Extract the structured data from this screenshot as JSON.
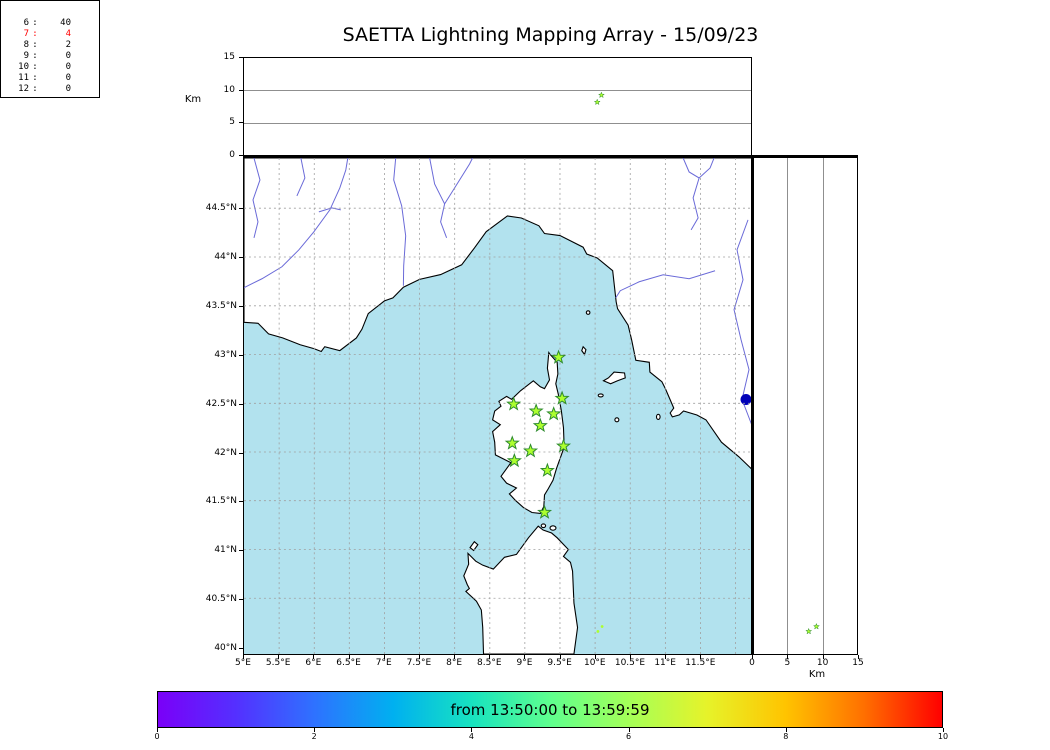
{
  "title": "SAETTA Lightning Mapping Array - 15/09/23",
  "top_panel": {
    "ylabel": "Km"
  },
  "right_panel": {
    "xlabel": "Km"
  },
  "alt_ticks": [
    0,
    5,
    10,
    15
  ],
  "map_axes": {
    "lon_ticks": [
      {
        "lon": 5,
        "label": "5°E"
      },
      {
        "lon": 5.5,
        "label": "5.5°E"
      },
      {
        "lon": 6,
        "label": "6°E"
      },
      {
        "lon": 6.5,
        "label": "6.5°E"
      },
      {
        "lon": 7,
        "label": "7°E"
      },
      {
        "lon": 7.5,
        "label": "7.5°E"
      },
      {
        "lon": 8,
        "label": "8°E"
      },
      {
        "lon": 8.5,
        "label": "8.5°E"
      },
      {
        "lon": 9,
        "label": "9°E"
      },
      {
        "lon": 9.5,
        "label": "9.5°E"
      },
      {
        "lon": 10,
        "label": "10°E"
      },
      {
        "lon": 10.5,
        "label": "10.5°E"
      },
      {
        "lon": 11,
        "label": "11°E"
      },
      {
        "lon": 11.5,
        "label": "11.5°E"
      }
    ],
    "lat_ticks": [
      {
        "lat": 40,
        "label": "40°N"
      },
      {
        "lat": 40.5,
        "label": "40.5°N"
      },
      {
        "lat": 41,
        "label": "41°N"
      },
      {
        "lat": 41.5,
        "label": "41.5°N"
      },
      {
        "lat": 42,
        "label": "42°N"
      },
      {
        "lat": 42.5,
        "label": "42.5°N"
      },
      {
        "lat": 43,
        "label": "43°N"
      },
      {
        "lat": 43.5,
        "label": "43.5°N"
      },
      {
        "lat": 44,
        "label": "44°N"
      },
      {
        "lat": 44.5,
        "label": "44.5°N"
      }
    ]
  },
  "stats": {
    "colon": ":",
    "rows": [
      {
        "level": "6",
        "count": "40",
        "red": false
      },
      {
        "level": "7",
        "count": "4",
        "red": true
      },
      {
        "level": "8",
        "count": "2",
        "red": false
      },
      {
        "level": "9",
        "count": "0",
        "red": false
      },
      {
        "level": "10",
        "count": "0",
        "red": false
      },
      {
        "level": "11",
        "count": "0",
        "red": false
      },
      {
        "level": "12",
        "count": "0",
        "red": false
      }
    ]
  },
  "colorbar": {
    "label": "from 13:50:00 to 13:59:59",
    "ticks": [
      0,
      2,
      4,
      6,
      8,
      10
    ],
    "stops": [
      "#7a00f8",
      "#5430ff",
      "#2e72ff",
      "#00b0f0",
      "#17e3c0",
      "#5eff8e",
      "#a4ff58",
      "#e6f32a",
      "#ffc400",
      "#ff7000",
      "#ff0000"
    ]
  },
  "colors": {
    "sea": "#b2e2ee",
    "land": "#ffffff",
    "coast": "#000000",
    "river": "#6a6ad8",
    "grid": "#a0a0a0",
    "station_fill": "#adff2f",
    "station_edge": "#2e8b2e",
    "lake": "#0000b8",
    "highlight_red": "#ff0000"
  },
  "chart_data": {
    "type": "map",
    "title": "SAETTA Lightning Mapping Array - 15/09/23",
    "date": "15/09/23",
    "time_window": {
      "from": "13:50:00",
      "to": "13:59:59"
    },
    "projection_extent": {
      "lon_min": 5.0,
      "lon_max": 12.3,
      "lat_min": 39.9,
      "lat_max": 45.0
    },
    "panels": [
      {
        "id": "altitude-vs-longitude",
        "position": "top",
        "x": "longitude",
        "y": "altitude_km",
        "y_range": [
          0,
          15
        ],
        "y_gridlines": [
          5,
          10
        ]
      },
      {
        "id": "plan-view-map",
        "position": "center",
        "x": "longitude",
        "y": "latitude",
        "grid_step_deg": 0.5
      },
      {
        "id": "altitude-vs-latitude",
        "position": "right",
        "x": "altitude_km",
        "y": "latitude",
        "x_range": [
          0,
          15
        ],
        "x_gridlines": [
          5,
          10
        ]
      },
      {
        "id": "stations-contributing-histogram",
        "position": "top-right"
      }
    ],
    "stations_lonlat": [
      [
        9.48,
        42.97
      ],
      [
        8.84,
        42.49
      ],
      [
        9.16,
        42.42
      ],
      [
        9.53,
        42.55
      ],
      [
        9.41,
        42.39
      ],
      [
        9.22,
        42.27
      ],
      [
        8.82,
        42.09
      ],
      [
        9.55,
        42.06
      ],
      [
        9.08,
        42.01
      ],
      [
        8.85,
        41.91
      ],
      [
        9.32,
        41.81
      ],
      [
        9.28,
        41.38
      ]
    ],
    "sources": [
      {
        "lon": 10.04,
        "lat": 40.16,
        "alt": 8.1
      },
      {
        "lon": 10.1,
        "lat": 40.21,
        "alt": 9.2
      }
    ],
    "station_count_histogram": {
      "levels": [
        6,
        7,
        8,
        9,
        10,
        11,
        12
      ],
      "counts": [
        40,
        4,
        2,
        0,
        0,
        0,
        0
      ],
      "highlighted_level": 7
    },
    "colorbar_range": [
      0,
      10
    ],
    "colorbar_label": "from 13:50:00 to 13:59:59"
  }
}
